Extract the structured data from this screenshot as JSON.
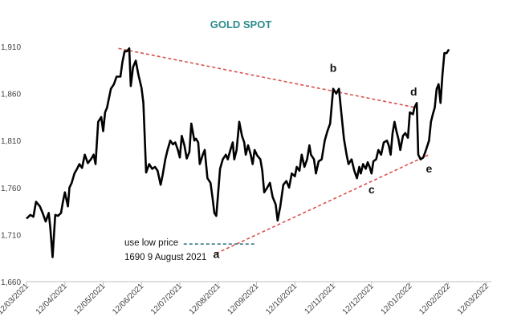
{
  "chart_data": {
    "type": "line",
    "title": "GOLD SPOT",
    "xlabel": "",
    "ylabel": "",
    "ylim": [
      1660,
      1910
    ],
    "y_ticks": [
      1660,
      1710,
      1760,
      1810,
      1860,
      1910
    ],
    "y_tick_labels": [
      "1,660",
      "1,710",
      "1,760",
      "1,810",
      "1,860",
      "1,910"
    ],
    "x_range": [
      0,
      12
    ],
    "x_ticks": [
      0,
      1,
      2,
      3,
      4,
      5,
      6,
      7,
      8,
      9,
      10,
      11,
      12
    ],
    "x_tick_labels": [
      "12/03/2021",
      "12/04/2021",
      "12/05/2021",
      "12/06/2021",
      "12/07/2021",
      "12/08/2021",
      "12/09/2021",
      "12/10/2021",
      "12/11/2021",
      "12/12/2021",
      "12/01/2022",
      "12/02/2022",
      "12/03/2022"
    ],
    "series": [
      {
        "name": "Gold spot",
        "color": "#000000",
        "points": [
          [
            0.0,
            1727
          ],
          [
            0.1,
            1731
          ],
          [
            0.18,
            1729
          ],
          [
            0.25,
            1745
          ],
          [
            0.35,
            1740
          ],
          [
            0.42,
            1733
          ],
          [
            0.5,
            1724
          ],
          [
            0.58,
            1733
          ],
          [
            0.62,
            1718
          ],
          [
            0.68,
            1686
          ],
          [
            0.75,
            1731
          ],
          [
            0.82,
            1730
          ],
          [
            0.9,
            1733
          ],
          [
            0.95,
            1745
          ],
          [
            1.0,
            1755
          ],
          [
            1.08,
            1740
          ],
          [
            1.12,
            1760
          ],
          [
            1.18,
            1765
          ],
          [
            1.25,
            1775
          ],
          [
            1.32,
            1780
          ],
          [
            1.38,
            1785
          ],
          [
            1.45,
            1781
          ],
          [
            1.52,
            1795
          ],
          [
            1.6,
            1786
          ],
          [
            1.68,
            1790
          ],
          [
            1.75,
            1795
          ],
          [
            1.8,
            1785
          ],
          [
            1.87,
            1830
          ],
          [
            1.95,
            1835
          ],
          [
            2.0,
            1820
          ],
          [
            2.05,
            1840
          ],
          [
            2.1,
            1845
          ],
          [
            2.2,
            1865
          ],
          [
            2.28,
            1870
          ],
          [
            2.35,
            1878
          ],
          [
            2.45,
            1878
          ],
          [
            2.5,
            1893
          ],
          [
            2.56,
            1905
          ],
          [
            2.62,
            1905
          ],
          [
            2.68,
            1908
          ],
          [
            2.72,
            1868
          ],
          [
            2.78,
            1888
          ],
          [
            2.85,
            1895
          ],
          [
            2.92,
            1880
          ],
          [
            3.0,
            1866
          ],
          [
            3.05,
            1850
          ],
          [
            3.12,
            1776
          ],
          [
            3.2,
            1785
          ],
          [
            3.28,
            1780
          ],
          [
            3.35,
            1782
          ],
          [
            3.42,
            1778
          ],
          [
            3.5,
            1763
          ],
          [
            3.55,
            1773
          ],
          [
            3.62,
            1790
          ],
          [
            3.68,
            1800
          ],
          [
            3.75,
            1810
          ],
          [
            3.82,
            1806
          ],
          [
            3.88,
            1808
          ],
          [
            3.95,
            1800
          ],
          [
            4.0,
            1792
          ],
          [
            4.05,
            1815
          ],
          [
            4.12,
            1805
          ],
          [
            4.18,
            1791
          ],
          [
            4.25,
            1798
          ],
          [
            4.3,
            1828
          ],
          [
            4.38,
            1810
          ],
          [
            4.42,
            1812
          ],
          [
            4.48,
            1808
          ],
          [
            4.52,
            1785
          ],
          [
            4.6,
            1795
          ],
          [
            4.65,
            1800
          ],
          [
            4.72,
            1770
          ],
          [
            4.8,
            1765
          ],
          [
            4.85,
            1750
          ],
          [
            4.9,
            1733
          ],
          [
            4.95,
            1730
          ],
          [
            5.0,
            1755
          ],
          [
            5.05,
            1780
          ],
          [
            5.12,
            1790
          ],
          [
            5.2,
            1795
          ],
          [
            5.25,
            1790
          ],
          [
            5.32,
            1800
          ],
          [
            5.38,
            1808
          ],
          [
            5.42,
            1790
          ],
          [
            5.48,
            1800
          ],
          [
            5.55,
            1830
          ],
          [
            5.62,
            1815
          ],
          [
            5.68,
            1808
          ],
          [
            5.72,
            1795
          ],
          [
            5.78,
            1805
          ],
          [
            5.85,
            1795
          ],
          [
            5.9,
            1785
          ],
          [
            5.95,
            1800
          ],
          [
            6.02,
            1794
          ],
          [
            6.1,
            1790
          ],
          [
            6.15,
            1778
          ],
          [
            6.2,
            1755
          ],
          [
            6.28,
            1760
          ],
          [
            6.35,
            1765
          ],
          [
            6.42,
            1750
          ],
          [
            6.5,
            1742
          ],
          [
            6.55,
            1725
          ],
          [
            6.62,
            1740
          ],
          [
            6.7,
            1763
          ],
          [
            6.78,
            1767
          ],
          [
            6.85,
            1760
          ],
          [
            6.92,
            1775
          ],
          [
            7.0,
            1772
          ],
          [
            7.05,
            1782
          ],
          [
            7.12,
            1778
          ],
          [
            7.18,
            1795
          ],
          [
            7.25,
            1782
          ],
          [
            7.32,
            1790
          ],
          [
            7.38,
            1805
          ],
          [
            7.42,
            1795
          ],
          [
            7.5,
            1790
          ],
          [
            7.55,
            1775
          ],
          [
            7.62,
            1788
          ],
          [
            7.7,
            1790
          ],
          [
            7.78,
            1810
          ],
          [
            7.85,
            1820
          ],
          [
            7.92,
            1828
          ],
          [
            8.0,
            1865
          ],
          [
            8.08,
            1860
          ],
          [
            8.15,
            1865
          ],
          [
            8.2,
            1845
          ],
          [
            8.28,
            1812
          ],
          [
            8.35,
            1795
          ],
          [
            8.4,
            1785
          ],
          [
            8.48,
            1790
          ],
          [
            8.55,
            1778
          ],
          [
            8.62,
            1770
          ],
          [
            8.68,
            1782
          ],
          [
            8.72,
            1775
          ],
          [
            8.78,
            1785
          ],
          [
            8.85,
            1780
          ],
          [
            8.9,
            1787
          ],
          [
            8.95,
            1782
          ],
          [
            9.0,
            1775
          ],
          [
            9.05,
            1788
          ],
          [
            9.12,
            1790
          ],
          [
            9.18,
            1800
          ],
          [
            9.25,
            1795
          ],
          [
            9.32,
            1808
          ],
          [
            9.4,
            1810
          ],
          [
            9.45,
            1805
          ],
          [
            9.5,
            1795
          ],
          [
            9.55,
            1818
          ],
          [
            9.6,
            1830
          ],
          [
            9.65,
            1820
          ],
          [
            9.7,
            1812
          ],
          [
            9.75,
            1800
          ],
          [
            9.82,
            1815
          ],
          [
            9.88,
            1818
          ],
          [
            9.95,
            1813
          ],
          [
            10.0,
            1840
          ],
          [
            10.08,
            1838
          ],
          [
            10.12,
            1845
          ],
          [
            10.18,
            1850
          ],
          [
            10.22,
            1795
          ],
          [
            10.28,
            1790
          ],
          [
            10.35,
            1792
          ],
          [
            10.42,
            1800
          ],
          [
            10.5,
            1810
          ],
          [
            10.55,
            1830
          ],
          [
            10.6,
            1838
          ],
          [
            10.65,
            1845
          ],
          [
            10.7,
            1865
          ],
          [
            10.75,
            1870
          ],
          [
            10.8,
            1850
          ],
          [
            10.85,
            1880
          ],
          [
            10.9,
            1903
          ],
          [
            10.96,
            1903
          ],
          [
            11.02,
            1907
          ]
        ]
      }
    ],
    "trendlines": [
      {
        "name": "upper resistance",
        "style": "dashed",
        "color": "#d9534f",
        "from": [
          2.4,
          1908
        ],
        "to": [
          10.17,
          1845
        ]
      },
      {
        "name": "lower support",
        "style": "dashed",
        "color": "#d9534f",
        "from": [
          4.95,
          1690
        ],
        "to": [
          10.5,
          1795
        ]
      },
      {
        "name": "low price marker",
        "style": "dashed",
        "color": "#2a6e7a",
        "from": [
          4.1,
          1700
        ],
        "to": [
          5.95,
          1700
        ]
      }
    ],
    "annotations": [
      {
        "text": "b",
        "x": 8.0,
        "y": 1883
      },
      {
        "text": "d",
        "x": 10.1,
        "y": 1858
      },
      {
        "text": "c",
        "x": 9.0,
        "y": 1754
      },
      {
        "text": "e",
        "x": 10.5,
        "y": 1776
      },
      {
        "text": "a",
        "x": 4.95,
        "y": 1685
      }
    ],
    "notes": [
      "use low price",
      "1690 9 August 2021"
    ]
  }
}
